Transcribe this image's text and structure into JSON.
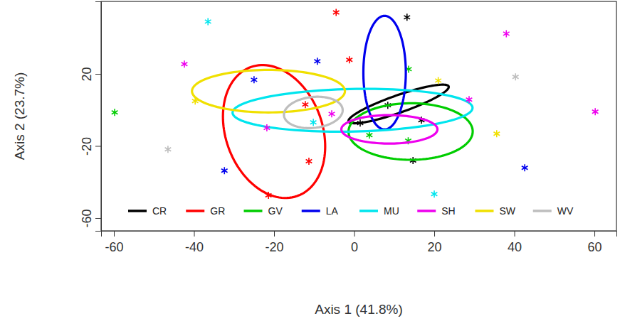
{
  "chart_data": {
    "type": "scatter",
    "x_label": "Axis 1 (41.8%)",
    "y_label": "Axis 2 (23.7%)",
    "xlim": [
      -63.2,
      65.5
    ],
    "ylim": [
      -67.1,
      60.2
    ],
    "xticks": [
      -60,
      -40,
      -20,
      0,
      20,
      40,
      60
    ],
    "yticks": [
      -60,
      -20,
      20
    ],
    "marker": "asterisk",
    "legend": "bottom",
    "series": [
      {
        "name": "CR",
        "color": "#000000",
        "x": [
          13.2,
          8.4,
          1.5,
          16.8,
          14.7
        ],
        "values": [
          51.4,
          2.6,
          -7.3,
          -5.7,
          -28.1
        ],
        "ellipse": {
          "cx": 11.1,
          "cy": 3.3,
          "rx": 16,
          "ry": 4,
          "angle": 40
        }
      },
      {
        "name": "GR",
        "color": "#ff0000",
        "x": [
          -4.5,
          -1.2,
          -12.2,
          -11.3,
          -21.4
        ],
        "values": [
          54.1,
          27.8,
          3.0,
          -28.5,
          -47.4
        ],
        "ellipse": {
          "cx": -20,
          "cy": -12,
          "rx": 12.4,
          "ry": 37,
          "angle": 5
        }
      },
      {
        "name": "GV",
        "color": "#00cd00",
        "x": [
          -59.8,
          13.6,
          3.8,
          13.5
        ],
        "values": [
          -1.4,
          22.6,
          -14,
          -17.1
        ],
        "ellipse": {
          "cx": 14.1,
          "cy": -12,
          "rx": 15.5,
          "ry": 15.7,
          "angle": -10
        }
      },
      {
        "name": "LA",
        "color": "#0000ee",
        "x": [
          -9.2,
          -25,
          -32.4,
          42.6
        ],
        "values": [
          27,
          16.7,
          -33.7,
          -32.1
        ],
        "ellipse": {
          "cx": 7.6,
          "cy": 20.7,
          "rx": 5.3,
          "ry": 31.5,
          "angle": 0
        }
      },
      {
        "name": "MU",
        "color": "#00e5ee",
        "x": [
          -36.5,
          -10.2,
          20
        ],
        "values": [
          49,
          -6.9,
          -46.7
        ],
        "ellipse": {
          "cx": -0.4,
          "cy": -0.2,
          "rx": 30,
          "ry": 11.8,
          "angle": 3
        }
      },
      {
        "name": "SH",
        "color": "#ee00ee",
        "x": [
          -42.4,
          38,
          60.2,
          28.7,
          -5.6,
          -21.8
        ],
        "values": [
          25.4,
          42.3,
          -1,
          5.7,
          -2.2,
          -10
        ],
        "ellipse": {
          "cx": 8.8,
          "cy": -10.8,
          "rx": 12,
          "ry": 7.9,
          "angle": 0
        }
      },
      {
        "name": "SW",
        "color": "#f0e000",
        "x": [
          -39.7,
          21,
          35.6
        ],
        "values": [
          4.9,
          16.3,
          -13.2
        ],
        "ellipse": {
          "cx": -21.4,
          "cy": 10.4,
          "rx": 19.1,
          "ry": 11.8,
          "angle": 0
        }
      },
      {
        "name": "WV",
        "color": "#bebebe",
        "x": [
          -46.5,
          40.3
        ],
        "values": [
          -21.9,
          18.3
        ],
        "ellipse": {
          "cx": -10.2,
          "cy": -1.4,
          "rx": 7.1,
          "ry": 8.9,
          "angle": -20
        }
      }
    ]
  }
}
